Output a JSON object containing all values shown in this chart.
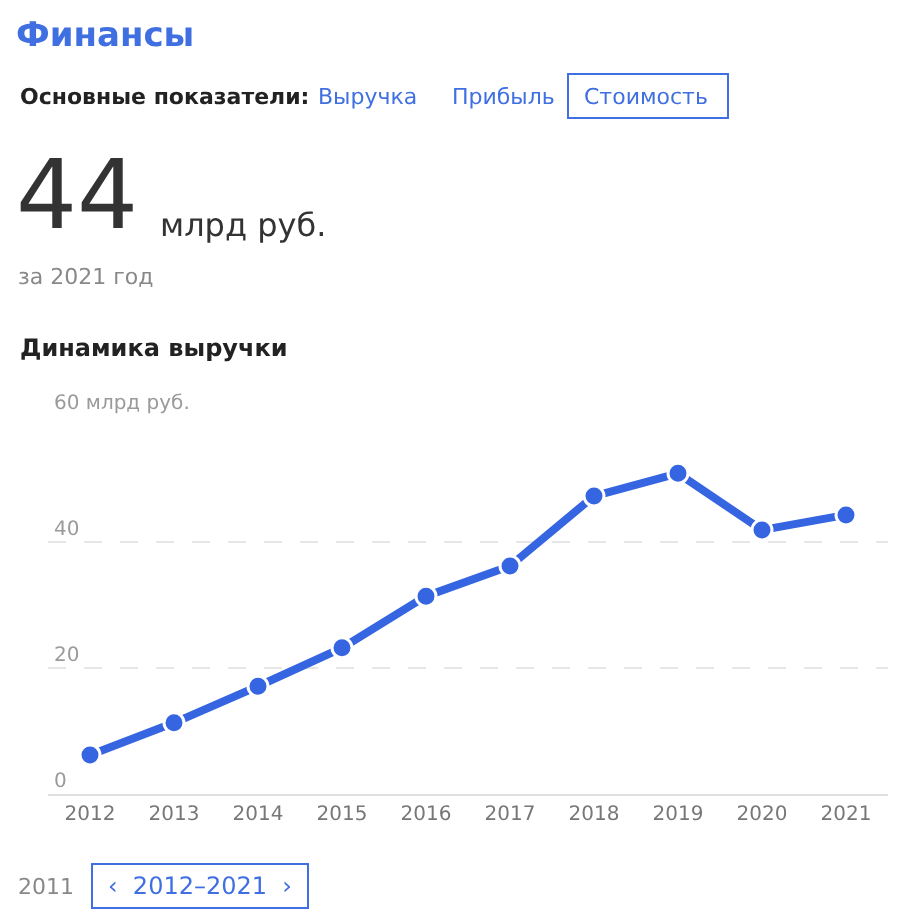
{
  "chart_data": {
    "type": "line",
    "title": "Финансы",
    "subtitle": "Динамика выручки",
    "annotations": [
      "Основные показатели:",
      "Выручка",
      "Прибыль",
      "Стоимость",
      "44",
      "млрд руб.",
      "за 2021 год",
      "2011",
      "‹  2012–2021  ›"
    ],
    "categories": [
      "2012",
      "2013",
      "2014",
      "2015",
      "2016",
      "2017",
      "2018",
      "2019",
      "2020",
      "2021"
    ],
    "series": [
      {
        "color": "#3565e0",
        "values": [
          6.2,
          11.3,
          17.1,
          23.2,
          31.4,
          36.2,
          47.3,
          50.9,
          41.9,
          44.3
        ]
      }
    ],
    "ylim": [
      0,
      60
    ],
    "yticks": [
      0,
      20,
      40,
      {
        "value": 60,
        "label": "60 млрд руб."
      }
    ],
    "grid": "y",
    "line_style": "solid",
    "marker": "circle"
  }
}
